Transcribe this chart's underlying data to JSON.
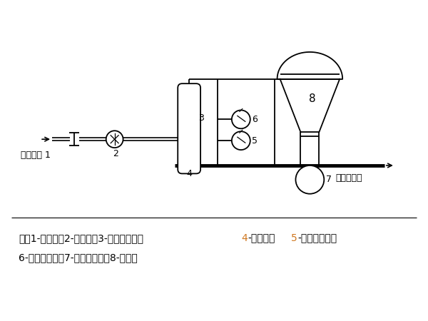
{
  "bg_color": "#ffffff",
  "fig_width": 6.0,
  "fig_height": 4.5,
  "note_line1": "注：1-节流阀；2-流量计；3-气水分离器；4-安全阀；5-管道压力表；",
  "note_line2": "6-灰罐压力表；7-发送器转鼓；8-灰罐。",
  "label_air": "压缩空气 1",
  "label_outlet": "气粉混合物",
  "num4_color": "#d07820",
  "num5_color": "#d07820"
}
